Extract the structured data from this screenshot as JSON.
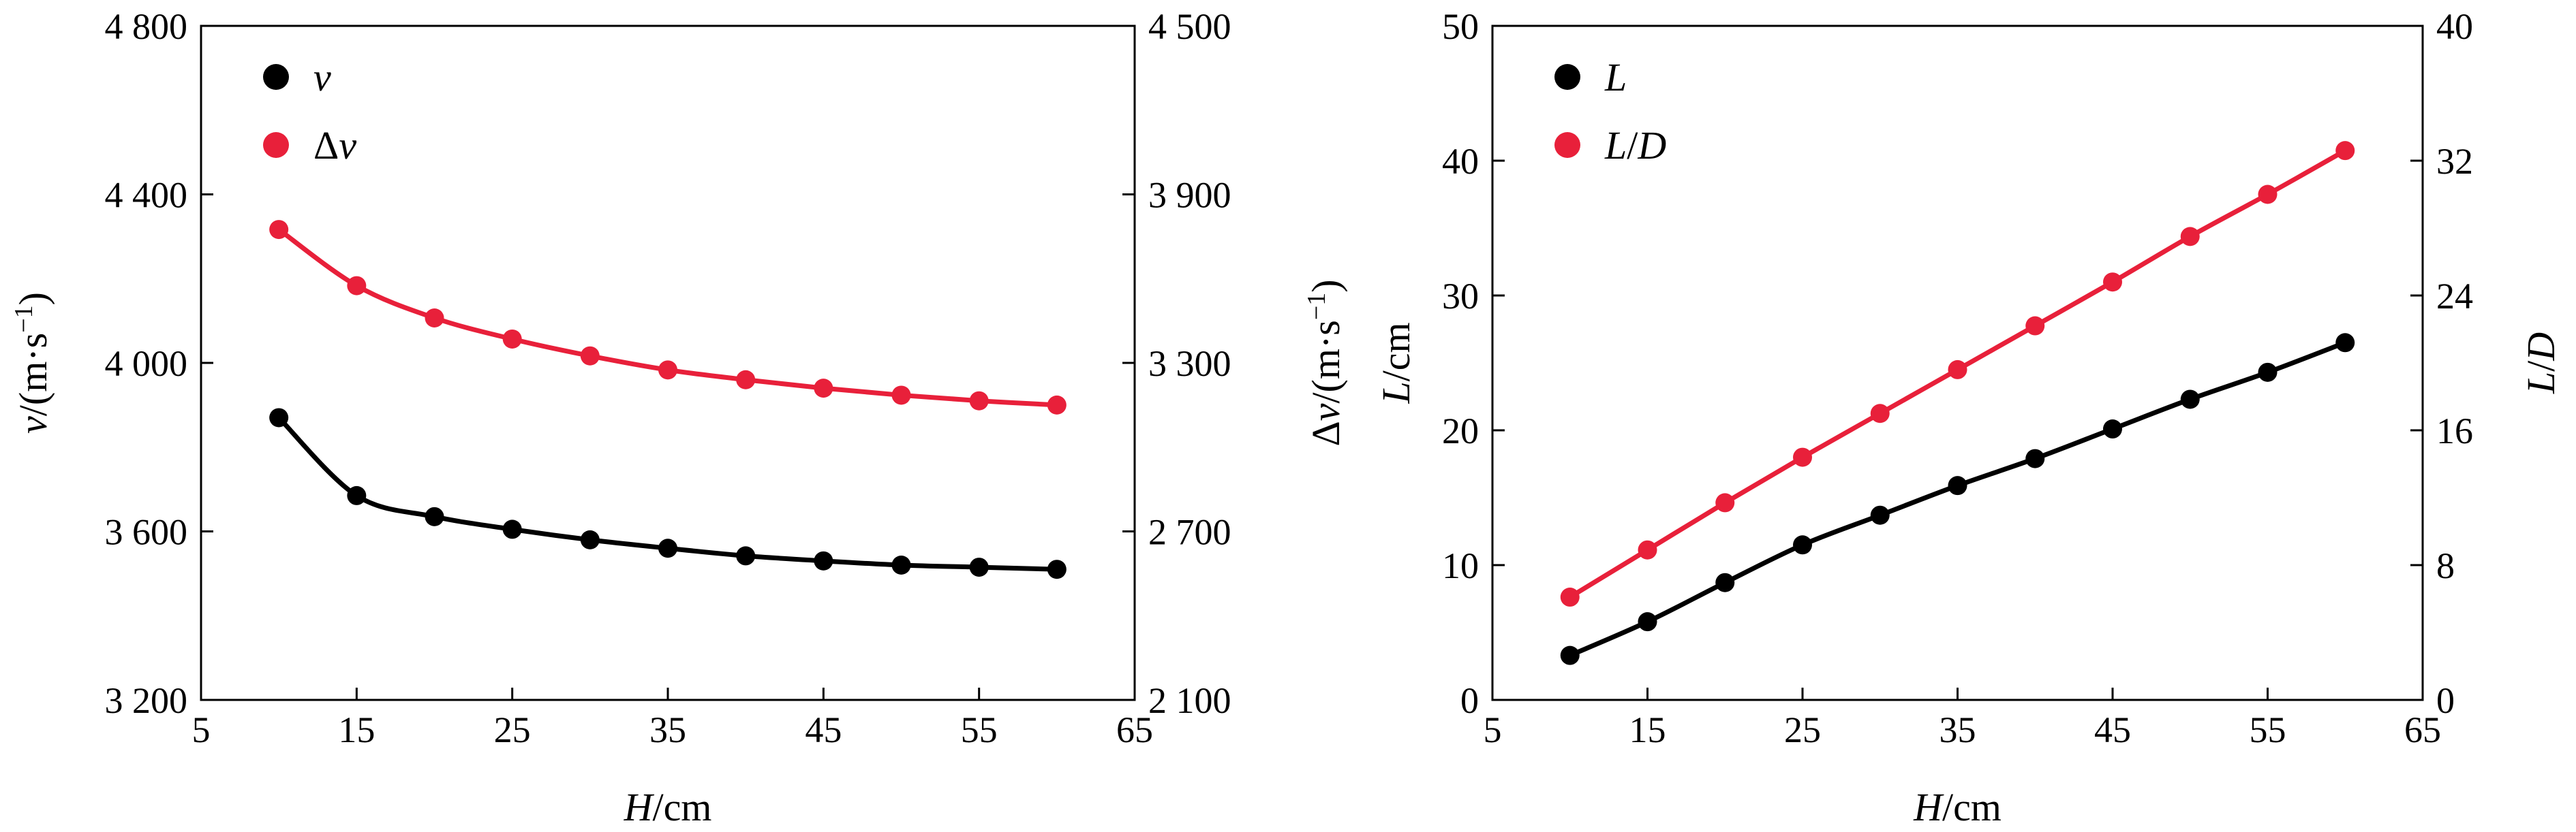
{
  "chart_data": [
    {
      "type": "line",
      "markers": true,
      "x_axis": {
        "label": "H/cm",
        "range": [
          5,
          65
        ],
        "tick_values": [
          5,
          15,
          25,
          35,
          45,
          55,
          65
        ],
        "tick_labels": [
          "5",
          "15",
          "25",
          "35",
          "45",
          "55",
          "65"
        ]
      },
      "y_left": {
        "label": "v/(m·s⁻¹)",
        "range": [
          3200,
          4800
        ],
        "tick_values": [
          3200,
          3600,
          4000,
          4400,
          4800
        ],
        "tick_labels": [
          "3 200",
          "3 600",
          "4 000",
          "4 400",
          "4 800"
        ]
      },
      "y_right": {
        "label": "Δv/(m·s⁻¹)",
        "range": [
          2100,
          4500
        ],
        "tick_values": [
          2100,
          2700,
          3300,
          3900,
          4500
        ],
        "tick_labels": [
          "2 100",
          "2 700",
          "3 300",
          "3 900",
          "4 500"
        ]
      },
      "legend_position": "top-left",
      "grid": false,
      "x": [
        10,
        15,
        20,
        25,
        30,
        35,
        40,
        45,
        50,
        55,
        60
      ],
      "series": [
        {
          "name": "v",
          "axis": "left",
          "color": "#000000",
          "values": [
            3870,
            3685,
            3635,
            3605,
            3580,
            3560,
            3542,
            3530,
            3520,
            3515,
            3510
          ]
        },
        {
          "name": "Δv",
          "axis": "right",
          "color": "#e8203a",
          "values": [
            3775,
            3575,
            3460,
            3385,
            3325,
            3275,
            3240,
            3210,
            3185,
            3165,
            3150
          ]
        }
      ]
    },
    {
      "type": "line",
      "markers": true,
      "x_axis": {
        "label": "H/cm",
        "range": [
          5,
          65
        ],
        "tick_values": [
          5,
          15,
          25,
          35,
          45,
          55,
          65
        ],
        "tick_labels": [
          "5",
          "15",
          "25",
          "35",
          "45",
          "55",
          "65"
        ]
      },
      "y_left": {
        "label": "L/cm",
        "range": [
          0,
          50
        ],
        "tick_values": [
          0,
          10,
          20,
          30,
          40,
          50
        ],
        "tick_labels": [
          "0",
          "10",
          "20",
          "30",
          "40",
          "50"
        ]
      },
      "y_right": {
        "label": "L/D",
        "range": [
          0,
          40
        ],
        "tick_values": [
          0,
          8,
          16,
          24,
          32,
          40
        ],
        "tick_labels": [
          "0",
          "8",
          "16",
          "24",
          "32",
          "40"
        ]
      },
      "legend_position": "top-left",
      "grid": false,
      "x": [
        10,
        15,
        20,
        25,
        30,
        35,
        40,
        45,
        50,
        55,
        60
      ],
      "series": [
        {
          "name": "L",
          "axis": "left",
          "color": "#000000",
          "values": [
            3.3,
            5.8,
            8.7,
            11.5,
            13.7,
            15.9,
            17.9,
            20.1,
            22.3,
            24.3,
            26.5
          ]
        },
        {
          "name": "L/D",
          "axis": "right",
          "color": "#e8203a",
          "values": [
            6.1,
            8.9,
            11.7,
            14.4,
            17.0,
            19.6,
            22.2,
            24.8,
            27.5,
            30.0,
            32.6
          ]
        }
      ]
    }
  ]
}
